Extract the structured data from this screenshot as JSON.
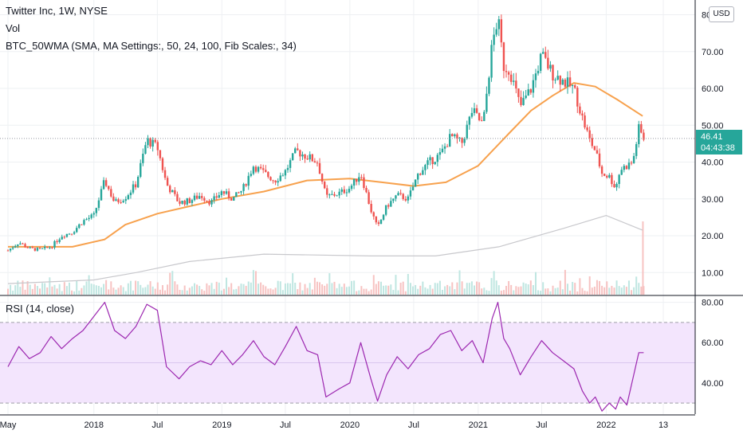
{
  "legend": {
    "title": "Twitter Inc, 1W, NYSE",
    "vol": "Vol",
    "indicator": "BTC_50WMA (SMA, MA Settings:, 50, 24, 100, Fib Scales:, 34)",
    "rsi": "RSI (14, close)"
  },
  "currency_button": "USD",
  "last_price": {
    "value": "46.41",
    "countdown": "04:43:38",
    "color": "#26a69a"
  },
  "colors": {
    "up": "#26a69a",
    "down": "#ef5350",
    "ma50": "#f7a14d",
    "ma200": "#c8c8cc",
    "rsi_line": "#9c27b0",
    "rsi_band": "#f3e5fd"
  },
  "chart_data": [
    {
      "type": "candlestick",
      "title": "Twitter Inc, 1W, NYSE",
      "x_ticks": [
        "May",
        "2018",
        "Jul",
        "2019",
        "Jul",
        "2020",
        "Jul",
        "2021",
        "Jul",
        "2022",
        "13"
      ],
      "y_ticks": [
        "10.00",
        "20.00",
        "30.00",
        "40.00",
        "50.00",
        "60.00",
        "70.00",
        "80.00"
      ],
      "ylim": [
        4,
        84
      ],
      "close_path": [
        [
          "2017-05-01",
          16.0
        ],
        [
          "2017-06-01",
          18.2
        ],
        [
          "2017-07-01",
          16.5
        ],
        [
          "2017-08-01",
          16.2
        ],
        [
          "2017-09-01",
          17.0
        ],
        [
          "2017-10-01",
          20.0
        ],
        [
          "2017-11-01",
          21.0
        ],
        [
          "2017-12-01",
          24.0
        ],
        [
          "2018-01-01",
          25.5
        ],
        [
          "2018-02-01",
          35.0
        ],
        [
          "2018-03-01",
          29.0
        ],
        [
          "2018-04-01",
          30.5
        ],
        [
          "2018-05-01",
          34.0
        ],
        [
          "2018-06-01",
          46.0
        ],
        [
          "2018-07-01",
          44.0
        ],
        [
          "2018-07-27",
          34.0
        ],
        [
          "2018-09-01",
          29.0
        ],
        [
          "2018-10-01",
          29.5
        ],
        [
          "2018-11-01",
          31.0
        ],
        [
          "2018-12-01",
          29.0
        ],
        [
          "2019-01-01",
          32.0
        ],
        [
          "2019-02-01",
          30.0
        ],
        [
          "2019-03-01",
          32.5
        ],
        [
          "2019-04-01",
          39.0
        ],
        [
          "2019-05-01",
          37.0
        ],
        [
          "2019-06-01",
          35.0
        ],
        [
          "2019-07-01",
          37.5
        ],
        [
          "2019-08-01",
          43.0
        ],
        [
          "2019-09-01",
          41.5
        ],
        [
          "2019-10-01",
          40.0
        ],
        [
          "2019-10-25",
          30.5
        ],
        [
          "2019-12-01",
          31.5
        ],
        [
          "2020-01-01",
          33.0
        ],
        [
          "2020-02-01",
          37.0
        ],
        [
          "2020-03-01",
          27.0
        ],
        [
          "2020-03-20",
          22.0
        ],
        [
          "2020-04-15",
          28.0
        ],
        [
          "2020-05-15",
          31.0
        ],
        [
          "2020-06-15",
          30.0
        ],
        [
          "2020-07-15",
          37.0
        ],
        [
          "2020-08-15",
          40.0
        ],
        [
          "2020-09-15",
          42.0
        ],
        [
          "2020-10-15",
          47.0
        ],
        [
          "2020-11-15",
          45.0
        ],
        [
          "2020-12-15",
          54.0
        ],
        [
          "2021-01-15",
          50.0
        ],
        [
          "2021-02-10",
          72.0
        ],
        [
          "2021-02-26",
          79.0
        ],
        [
          "2021-03-15",
          66.0
        ],
        [
          "2021-04-01",
          65.0
        ],
        [
          "2021-05-01",
          55.0
        ],
        [
          "2021-06-01",
          60.0
        ],
        [
          "2021-07-01",
          69.0
        ],
        [
          "2021-08-01",
          64.0
        ],
        [
          "2021-09-01",
          62.0
        ],
        [
          "2021-10-01",
          60.0
        ],
        [
          "2021-10-25",
          52.0
        ],
        [
          "2021-11-15",
          46.0
        ],
        [
          "2021-12-01",
          43.0
        ],
        [
          "2021-12-20",
          37.0
        ],
        [
          "2022-01-10",
          36.0
        ],
        [
          "2022-01-28",
          33.0
        ],
        [
          "2022-02-10",
          38.0
        ],
        [
          "2022-03-01",
          39.0
        ],
        [
          "2022-03-18",
          40.0
        ],
        [
          "2022-04-04",
          49.0
        ],
        [
          "2022-04-18",
          46.41
        ]
      ],
      "series": [
        {
          "name": "BTC_50WMA 50",
          "color": "#f7a14d",
          "values": [
            [
              "2017-05-01",
              17.0
            ],
            [
              "2017-11-01",
              17.0
            ],
            [
              "2018-02-01",
              19.0
            ],
            [
              "2018-04-01",
              23.0
            ],
            [
              "2018-07-01",
              26.0
            ],
            [
              "2018-10-01",
              28.0
            ],
            [
              "2019-01-01",
              30.0
            ],
            [
              "2019-05-01",
              32.0
            ],
            [
              "2019-09-01",
              35.0
            ],
            [
              "2020-01-01",
              35.5
            ],
            [
              "2020-04-01",
              34.5
            ],
            [
              "2020-07-01",
              33.5
            ],
            [
              "2020-10-01",
              34.5
            ],
            [
              "2021-01-01",
              39.0
            ],
            [
              "2021-04-01",
              48.0
            ],
            [
              "2021-06-01",
              54.0
            ],
            [
              "2021-08-01",
              58.0
            ],
            [
              "2021-10-01",
              61.5
            ],
            [
              "2021-12-01",
              60.5
            ],
            [
              "2022-02-01",
              57.0
            ],
            [
              "2022-04-15",
              52.5
            ]
          ]
        },
        {
          "name": "BTC_50WMA 200",
          "color": "#c8c8cc",
          "values": [
            [
              "2017-05-01",
              7.0
            ],
            [
              "2018-01-01",
              8.0
            ],
            [
              "2018-05-01",
              10.0
            ],
            [
              "2018-10-01",
              13.0
            ],
            [
              "2019-05-01",
              15.0
            ],
            [
              "2020-03-01",
              14.5
            ],
            [
              "2020-09-01",
              14.5
            ],
            [
              "2021-03-01",
              17.0
            ],
            [
              "2021-09-01",
              22.0
            ],
            [
              "2022-01-01",
              25.5
            ],
            [
              "2022-04-15",
              21.5
            ]
          ]
        }
      ]
    },
    {
      "type": "line",
      "title": "RSI (14, close)",
      "y_ticks": [
        "40.00",
        "60.00",
        "80.00"
      ],
      "ylim": [
        24.5,
        83
      ],
      "band": [
        30,
        70
      ],
      "series": [
        {
          "name": "RSI (14, close)",
          "color": "#9c27b0",
          "values": [
            [
              "2017-05-01",
              48
            ],
            [
              "2017-06-01",
              58
            ],
            [
              "2017-07-01",
              52
            ],
            [
              "2017-08-01",
              55
            ],
            [
              "2017-09-01",
              63
            ],
            [
              "2017-10-01",
              57
            ],
            [
              "2017-11-01",
              62
            ],
            [
              "2017-12-01",
              66
            ],
            [
              "2018-01-01",
              73
            ],
            [
              "2018-02-01",
              80
            ],
            [
              "2018-03-01",
              66
            ],
            [
              "2018-04-01",
              62
            ],
            [
              "2018-05-01",
              68
            ],
            [
              "2018-06-01",
              79
            ],
            [
              "2018-07-01",
              76
            ],
            [
              "2018-07-27",
              48
            ],
            [
              "2018-09-01",
              42
            ],
            [
              "2018-10-01",
              48
            ],
            [
              "2018-11-01",
              51
            ],
            [
              "2018-12-01",
              49
            ],
            [
              "2019-01-01",
              56
            ],
            [
              "2019-02-01",
              49
            ],
            [
              "2019-03-01",
              54
            ],
            [
              "2019-04-01",
              61
            ],
            [
              "2019-05-01",
              53
            ],
            [
              "2019-06-01",
              49
            ],
            [
              "2019-07-01",
              58
            ],
            [
              "2019-08-01",
              68
            ],
            [
              "2019-09-01",
              56
            ],
            [
              "2019-10-01",
              54
            ],
            [
              "2019-10-25",
              33
            ],
            [
              "2019-12-01",
              37
            ],
            [
              "2020-01-01",
              40
            ],
            [
              "2020-02-01",
              60
            ],
            [
              "2020-03-01",
              42
            ],
            [
              "2020-03-20",
              31
            ],
            [
              "2020-04-15",
              44
            ],
            [
              "2020-05-15",
              53
            ],
            [
              "2020-06-15",
              47
            ],
            [
              "2020-07-15",
              54
            ],
            [
              "2020-08-15",
              57
            ],
            [
              "2020-09-15",
              64
            ],
            [
              "2020-10-15",
              66
            ],
            [
              "2020-11-15",
              56
            ],
            [
              "2020-12-15",
              61
            ],
            [
              "2021-01-15",
              50
            ],
            [
              "2021-02-10",
              72
            ],
            [
              "2021-02-26",
              80
            ],
            [
              "2021-03-15",
              62
            ],
            [
              "2021-04-01",
              57
            ],
            [
              "2021-05-01",
              44
            ],
            [
              "2021-06-01",
              53
            ],
            [
              "2021-07-01",
              61
            ],
            [
              "2021-08-01",
              55
            ],
            [
              "2021-09-01",
              51
            ],
            [
              "2021-10-01",
              47
            ],
            [
              "2021-10-25",
              36
            ],
            [
              "2021-11-15",
              30
            ],
            [
              "2021-12-01",
              33
            ],
            [
              "2021-12-20",
              26
            ],
            [
              "2022-01-10",
              30
            ],
            [
              "2022-01-28",
              27
            ],
            [
              "2022-02-10",
              33
            ],
            [
              "2022-03-01",
              29
            ],
            [
              "2022-03-18",
              42
            ],
            [
              "2022-04-04",
              55
            ],
            [
              "2022-04-18",
              55
            ]
          ]
        }
      ]
    }
  ]
}
